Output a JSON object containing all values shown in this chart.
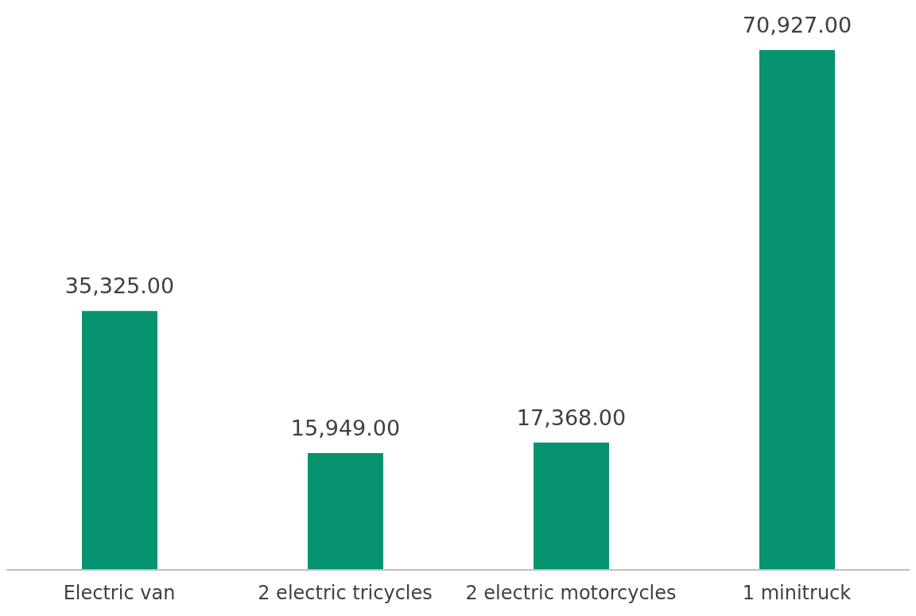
{
  "chart_data": {
    "type": "bar",
    "categories": [
      "Electric van",
      "2 electric tricycles",
      "2 electric motorcycles",
      "1 minitruck"
    ],
    "values": [
      35325,
      15949,
      17368,
      70927
    ],
    "value_labels": [
      "35,325.00",
      "15,949.00",
      "17,368.00",
      "70,927.00"
    ],
    "color": "#069370"
  }
}
